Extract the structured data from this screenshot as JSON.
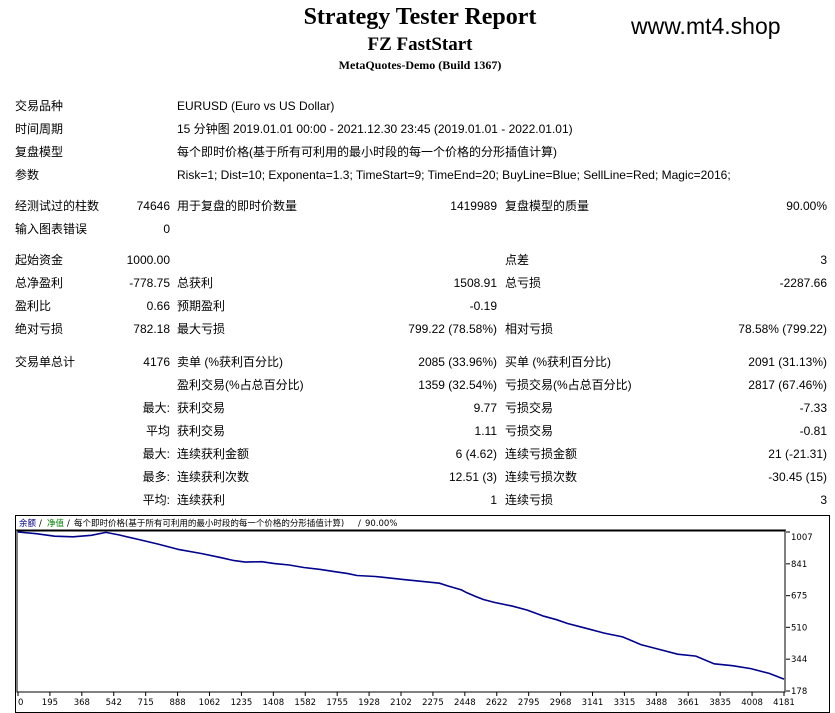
{
  "header": {
    "title": "Strategy Tester Report",
    "expert": "FZ FastStart",
    "server": "MetaQuotes-Demo (Build 1367)",
    "watermark": "www.mt4.shop"
  },
  "info": {
    "symbol_label": "交易品种",
    "symbol_value": "EURUSD (Euro vs US Dollar)",
    "period_label": "时间周期",
    "period_value": "15 分钟图 2019.01.01 00:00 - 2021.12.30 23:45 (2019.01.01 - 2022.01.01)",
    "model_label": "复盘模型",
    "model_value": "每个即时价格(基于所有可利用的最小时段的每一个价格的分形插值计算)",
    "params_label": "参数",
    "params_value": "Risk=1; Dist=10; Exponenta=1.3; TimeStart=9; TimeEnd=20; BuyLine=Blue; SellLine=Red; Magic=2016;"
  },
  "stats": {
    "bars_label": "经测试过的柱数",
    "bars_value": "74646",
    "ticks_label": "用于复盘的即时价数量",
    "ticks_value": "1419989",
    "quality_label": "复盘模型的质量",
    "quality_value": "90.00%",
    "mismatch_label": "输入图表错误",
    "mismatch_value": "0",
    "deposit_label": "起始资金",
    "deposit_value": "1000.00",
    "spread_label": "点差",
    "spread_value": "3",
    "net_label": "总净盈利",
    "net_value": "-778.75",
    "gross_profit_label": "总获利",
    "gross_profit_value": "1508.91",
    "gross_loss_label": "总亏损",
    "gross_loss_value": "-2287.66",
    "pf_label": "盈利比",
    "pf_value": "0.66",
    "payoff_label": "预期盈利",
    "payoff_value": "-0.19",
    "abs_dd_label": "绝对亏损",
    "abs_dd_value": "782.18",
    "max_dd_label": "最大亏损",
    "max_dd_value": "799.22 (78.58%)",
    "rel_dd_label": "相对亏损",
    "rel_dd_value": "78.58% (799.22)",
    "trades_label": "交易单总计",
    "trades_value": "4176",
    "short_label": "卖单 (%获利百分比)",
    "short_value": "2085 (33.96%)",
    "long_label": "买单 (%获利百分比)",
    "long_value": "2091 (31.13%)",
    "profit_trades_label": "盈利交易(%占总百分比)",
    "profit_trades_value": "1359 (32.54%)",
    "loss_trades_label": "亏损交易(%占总百分比)",
    "loss_trades_value": "2817 (67.46%)",
    "largest_prefix": "最大:",
    "largest_profit_label": "获利交易",
    "largest_profit_value": "9.77",
    "largest_loss_label": "亏损交易",
    "largest_loss_value": "-7.33",
    "average_prefix": "平均",
    "avg_profit_label": "获利交易",
    "avg_profit_value": "1.11",
    "avg_loss_label": "亏损交易",
    "avg_loss_value": "-0.81",
    "max_prefix": "最大:",
    "max_cons_wins_label": "连续获利金额",
    "max_cons_wins_value": "6 (4.62)",
    "max_cons_losses_label": "连续亏损金额",
    "max_cons_losses_value": "21 (-21.31)",
    "most_prefix": "最多:",
    "max_cons_profit_label": "连续获利次数",
    "max_cons_profit_value": "12.51 (3)",
    "max_cons_loss_label": "连续亏损次数",
    "max_cons_loss_value": "-30.45 (15)",
    "avg2_prefix": "平均:",
    "avg_cons_wins_label": "连续获利",
    "avg_cons_wins_value": "1",
    "avg_cons_losses_label": "连续亏损",
    "avg_cons_losses_value": "3"
  },
  "chart_data": {
    "type": "line",
    "legend": {
      "balance": "余额",
      "sep1": "/",
      "equity": "净值",
      "sep2": "/",
      "model": "每个即时价格(基于所有可利用的最小时段的每一个价格的分形插值计算)",
      "sep3": "/",
      "quality": "90.00%"
    },
    "x_ticks": [
      "0",
      "195",
      "368",
      "542",
      "715",
      "888",
      "1062",
      "1235",
      "1408",
      "1582",
      "1755",
      "1928",
      "2102",
      "2275",
      "2448",
      "2622",
      "2795",
      "2968",
      "3141",
      "3315",
      "3488",
      "3661",
      "3835",
      "4008",
      "4181"
    ],
    "y_ticks": [
      "1007",
      "841",
      "675",
      "510",
      "344",
      "178"
    ],
    "xlim": [
      0,
      4181
    ],
    "ylim": [
      178,
      1007
    ],
    "line_color": "#00008b",
    "series": [
      {
        "x": [
          0,
          100,
          200,
          300,
          400,
          480,
          550,
          650,
          760,
          880,
          1000,
          1100,
          1180,
          1240,
          1330,
          1400,
          1480,
          1560,
          1650,
          1730,
          1800,
          1850,
          1950,
          2100,
          2200,
          2300,
          2350,
          2420,
          2450,
          2500,
          2540,
          2600,
          2700,
          2780,
          2830,
          2870,
          2940,
          3000,
          3080,
          3200,
          3300,
          3400,
          3500,
          3600,
          3700,
          3800,
          3900,
          4000,
          4100,
          4181
        ],
        "y": [
          1007,
          998,
          985,
          982,
          990,
          1005,
          992,
          970,
          945,
          915,
          895,
          875,
          858,
          850,
          852,
          842,
          835,
          822,
          812,
          800,
          790,
          780,
          775,
          760,
          750,
          740,
          725,
          705,
          690,
          670,
          655,
          640,
          620,
          600,
          582,
          568,
          550,
          530,
          510,
          480,
          460,
          420,
          395,
          370,
          360,
          320,
          310,
          295,
          270,
          240
        ]
      }
    ]
  }
}
